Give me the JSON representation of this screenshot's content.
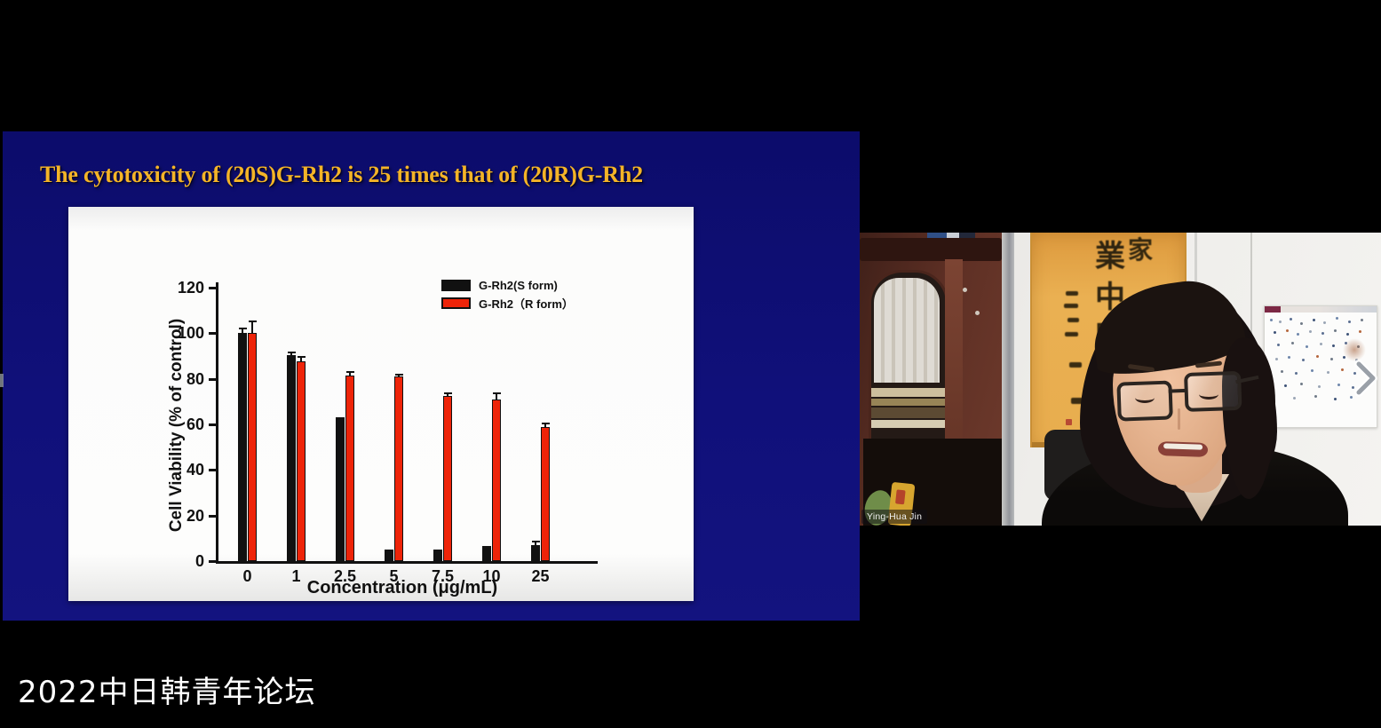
{
  "stage": {
    "caption": "2022中日韩青年论坛"
  },
  "slide": {
    "title": "The cytotoxicity of (20S)G-Rh2 is 25 times that of (20R)G-Rh2",
    "colors": {
      "background": "#10107a",
      "title_text": "#f4b427",
      "panel": "#fdfdfc"
    }
  },
  "chart_data": {
    "type": "bar",
    "title": "",
    "categories": [
      "0",
      "1",
      "2.5",
      "5",
      "7.5",
      "10",
      "25"
    ],
    "series": [
      {
        "name": "G-Rh2(S form)",
        "color": "#111111",
        "values": [
          100,
          90.5,
          63,
          5,
          5,
          6.5,
          7
        ],
        "errors": [
          2,
          1,
          0,
          0,
          0,
          0,
          1.5
        ]
      },
      {
        "name": "G-Rh2（R form）",
        "color": "#ee2409",
        "values": [
          100,
          87.5,
          81.5,
          81,
          72.5,
          71,
          59
        ],
        "errors": [
          5,
          2,
          1.5,
          1,
          1,
          2.5,
          1.5
        ]
      }
    ],
    "xlabel": "Concentration (μg/mL)",
    "ylabel": "Cell Viability (% of control)",
    "ylim": [
      0,
      120
    ],
    "yticks": [
      0,
      20,
      40,
      60,
      80,
      100,
      120
    ],
    "legend_position": "top-right",
    "grid": false
  },
  "video": {
    "participant_name": "Ying-Hua Jin",
    "chevron_icon": "chevron-right",
    "calligraphy_characters": [
      "家",
      "業",
      "中",
      "堅"
    ]
  }
}
